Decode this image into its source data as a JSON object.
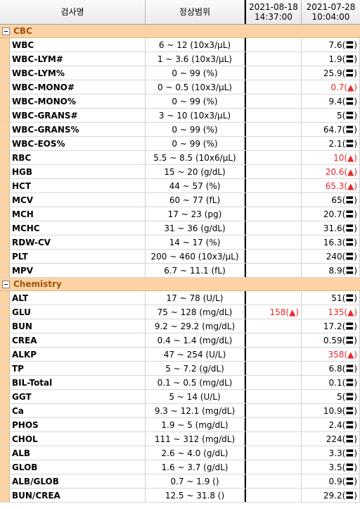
{
  "header": {
    "name_col": "검사명",
    "range_col": "정상범위",
    "date1": "2021-08-18",
    "time1": "14:37:00",
    "date2": "2021-07-28",
    "time2": "10:04:00"
  },
  "colors": {
    "group_bg": "#fbd3a4",
    "group_text": "#a0520a",
    "high_value": "#e8272b"
  },
  "groups": [
    {
      "name": "CBC",
      "rows": [
        {
          "name": "WBC",
          "range": "6 ~ 12 (10x3/μL)",
          "v1": "",
          "v2": "7.6(〓)",
          "v2_high": false
        },
        {
          "name": "WBC-LYM#",
          "range": "1 ~ 3.6 (10x3/μL)",
          "v1": "",
          "v2": "1.9(〓)",
          "v2_high": false
        },
        {
          "name": "WBC-LYM%",
          "range": "0 ~ 99 (%)",
          "v1": "",
          "v2": "25.9(〓)",
          "v2_high": false
        },
        {
          "name": "WBC-MONO#",
          "range": "0 ~ 0.5 (10x3/μL)",
          "v1": "",
          "v2": "0.7(▲)",
          "v2_high": true
        },
        {
          "name": "WBC-MONO%",
          "range": "0 ~ 99 (%)",
          "v1": "",
          "v2": "9.4(〓)",
          "v2_high": false
        },
        {
          "name": "WBC-GRANS#",
          "range": "3 ~ 10 (10x3/μL)",
          "v1": "",
          "v2": "5(〓)",
          "v2_high": false
        },
        {
          "name": "WBC-GRANS%",
          "range": "0 ~ 99 (%)",
          "v1": "",
          "v2": "64.7(〓)",
          "v2_high": false
        },
        {
          "name": "WBC-EOS%",
          "range": "0 ~ 99 (%)",
          "v1": "",
          "v2": "2.1(〓)",
          "v2_high": false
        },
        {
          "name": "RBC",
          "range": "5.5 ~ 8.5 (10x6/μL)",
          "v1": "",
          "v2": "10(▲)",
          "v2_high": true
        },
        {
          "name": "HGB",
          "range": "15 ~ 20 (g/dL)",
          "v1": "",
          "v2": "20.6(▲)",
          "v2_high": true
        },
        {
          "name": "HCT",
          "range": "44 ~ 57 (%)",
          "v1": "",
          "v2": "65.3(▲)",
          "v2_high": true
        },
        {
          "name": "MCV",
          "range": "60 ~ 77 (fL)",
          "v1": "",
          "v2": "65(〓)",
          "v2_high": false
        },
        {
          "name": "MCH",
          "range": "17 ~ 23 (pg)",
          "v1": "",
          "v2": "20.7(〓)",
          "v2_high": false
        },
        {
          "name": "MCHC",
          "range": "31 ~ 36 (g/dL)",
          "v1": "",
          "v2": "31.6(〓)",
          "v2_high": false
        },
        {
          "name": "RDW-CV",
          "range": "14 ~ 17 (%)",
          "v1": "",
          "v2": "16.3(〓)",
          "v2_high": false
        },
        {
          "name": "PLT",
          "range": "200 ~ 460 (10x3/μL)",
          "v1": "",
          "v2": "240(〓)",
          "v2_high": false
        },
        {
          "name": "MPV",
          "range": "6.7 ~ 11.1 (fL)",
          "v1": "",
          "v2": "8.9(〓)",
          "v2_high": false
        }
      ]
    },
    {
      "name": "Chemistry",
      "rows": [
        {
          "name": "ALT",
          "range": "17 ~ 78 (U/L)",
          "v1": "",
          "v2": "51(〓)",
          "v2_high": false
        },
        {
          "name": "GLU",
          "range": "75 ~ 128 (mg/dL)",
          "v1": "158(▲)",
          "v1_high": true,
          "v2": "135(▲)",
          "v2_high": true
        },
        {
          "name": "BUN",
          "range": "9.2 ~ 29.2 (mg/dL)",
          "v1": "",
          "v2": "17.2(〓)",
          "v2_high": false
        },
        {
          "name": "CREA",
          "range": "0.4 ~ 1.4 (mg/dL)",
          "v1": "",
          "v2": "0.59(〓)",
          "v2_high": false
        },
        {
          "name": "ALKP",
          "range": "47 ~ 254 (U/L)",
          "v1": "",
          "v2": "358(▲)",
          "v2_high": true
        },
        {
          "name": "TP",
          "range": "5 ~ 7.2 (g/dL)",
          "v1": "",
          "v2": "6.8(〓)",
          "v2_high": false
        },
        {
          "name": "BIL-Total",
          "range": "0.1 ~ 0.5 (mg/dL)",
          "v1": "",
          "v2": "0.1(〓)",
          "v2_high": false
        },
        {
          "name": "GGT",
          "range": "5 ~ 14 (U/L)",
          "v1": "",
          "v2": "5(〓)",
          "v2_high": false
        },
        {
          "name": "Ca",
          "range": "9.3 ~ 12.1 (mg/dL)",
          "v1": "",
          "v2": "10.9(〓)",
          "v2_high": false
        },
        {
          "name": "PHOS",
          "range": "1.9 ~ 5 (mg/dL)",
          "v1": "",
          "v2": "2.4(〓)",
          "v2_high": false
        },
        {
          "name": "CHOL",
          "range": "111 ~ 312 (mg/dL)",
          "v1": "",
          "v2": "224(〓)",
          "v2_high": false
        },
        {
          "name": "ALB",
          "range": "2.6 ~ 4.0 (g/dL)",
          "v1": "",
          "v2": "3.3(〓)",
          "v2_high": false
        },
        {
          "name": "GLOB",
          "range": "1.6 ~ 3.7 (g/dL)",
          "v1": "",
          "v2": "3.5(〓)",
          "v2_high": false
        },
        {
          "name": "ALB/GLOB",
          "range": "0.7 ~ 1.9 ()",
          "v1": "",
          "v2": "0.9(〓)",
          "v2_high": false
        },
        {
          "name": "BUN/CREA",
          "range": "12.5 ~ 31.8 ()",
          "v1": "",
          "v2": "29.2(〓)",
          "v2_high": false
        }
      ]
    }
  ]
}
